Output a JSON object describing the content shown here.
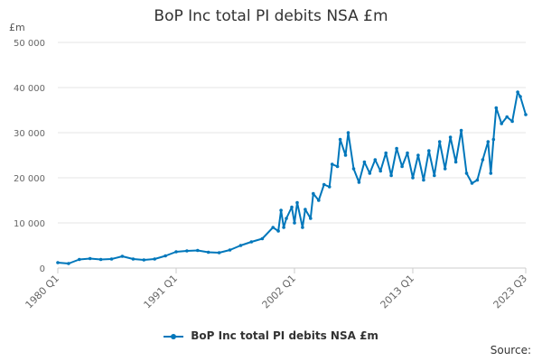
{
  "chart_data": {
    "type": "line",
    "title": "BoP Inc total PI debits NSA £m",
    "ylabel": "£m",
    "xlabel": "",
    "ylim": [
      0,
      50000
    ],
    "yticks": [
      0,
      10000,
      20000,
      30000,
      40000,
      50000
    ],
    "ytick_labels": [
      "0",
      "10 000",
      "20 000",
      "30 000",
      "40 000",
      "50 000"
    ],
    "xticks": [
      "1980 Q1",
      "1991 Q1",
      "2002 Q1",
      "2013 Q1",
      "2023 Q3"
    ],
    "grid": true,
    "legend_position": "bottom",
    "color": "#0077bb",
    "series": [
      {
        "name": "BoP Inc total PI debits NSA £m",
        "points": [
          [
            "1980 Q1",
            1200
          ],
          [
            "1981 Q1",
            1000
          ],
          [
            "1982 Q1",
            1900
          ],
          [
            "1983 Q1",
            2100
          ],
          [
            "1984 Q1",
            1900
          ],
          [
            "1985 Q1",
            2000
          ],
          [
            "1986 Q1",
            2600
          ],
          [
            "1987 Q1",
            2000
          ],
          [
            "1988 Q1",
            1800
          ],
          [
            "1989 Q1",
            2000
          ],
          [
            "1990 Q1",
            2700
          ],
          [
            "1991 Q1",
            3600
          ],
          [
            "1992 Q1",
            3800
          ],
          [
            "1993 Q1",
            3900
          ],
          [
            "1994 Q1",
            3500
          ],
          [
            "1995 Q1",
            3400
          ],
          [
            "1996 Q1",
            4000
          ],
          [
            "1997 Q1",
            5000
          ],
          [
            "1998 Q1",
            5800
          ],
          [
            "1999 Q1",
            6500
          ],
          [
            "2000 Q1",
            9000
          ],
          [
            "2000 Q3",
            8200
          ],
          [
            "2000 Q4",
            12800
          ],
          [
            "2001 Q1",
            9000
          ],
          [
            "2001 Q2",
            11000
          ],
          [
            "2001 Q4",
            13500
          ],
          [
            "2002 Q1",
            10000
          ],
          [
            "2002 Q2",
            14500
          ],
          [
            "2002 Q4",
            9000
          ],
          [
            "2003 Q1",
            13000
          ],
          [
            "2003 Q3",
            11000
          ],
          [
            "2003 Q4",
            16500
          ],
          [
            "2004 Q2",
            15000
          ],
          [
            "2004 Q4",
            18500
          ],
          [
            "2005 Q2",
            18000
          ],
          [
            "2005 Q3",
            23000
          ],
          [
            "2006 Q1",
            22500
          ],
          [
            "2006 Q2",
            28500
          ],
          [
            "2006 Q4",
            25000
          ],
          [
            "2007 Q1",
            30000
          ],
          [
            "2007 Q3",
            22000
          ],
          [
            "2008 Q1",
            19000
          ],
          [
            "2008 Q3",
            23500
          ],
          [
            "2009 Q1",
            21000
          ],
          [
            "2009 Q3",
            24000
          ],
          [
            "2010 Q1",
            21500
          ],
          [
            "2010 Q3",
            25500
          ],
          [
            "2011 Q1",
            20500
          ],
          [
            "2011 Q3",
            26500
          ],
          [
            "2012 Q1",
            22500
          ],
          [
            "2012 Q3",
            25500
          ],
          [
            "2013 Q1",
            20000
          ],
          [
            "2013 Q3",
            25000
          ],
          [
            "2014 Q1",
            19500
          ],
          [
            "2014 Q3",
            26000
          ],
          [
            "2015 Q1",
            20500
          ],
          [
            "2015 Q3",
            28000
          ],
          [
            "2016 Q1",
            22000
          ],
          [
            "2016 Q3",
            29000
          ],
          [
            "2017 Q1",
            23500
          ],
          [
            "2017 Q3",
            30500
          ],
          [
            "2018 Q1",
            21000
          ],
          [
            "2018 Q3",
            18800
          ],
          [
            "2019 Q1",
            19500
          ],
          [
            "2019 Q3",
            24000
          ],
          [
            "2020 Q1",
            28000
          ],
          [
            "2020 Q2",
            21000
          ],
          [
            "2020 Q3",
            28500
          ],
          [
            "2020 Q4",
            35500
          ],
          [
            "2021 Q2",
            32000
          ],
          [
            "2021 Q4",
            33500
          ],
          [
            "2022 Q2",
            32500
          ],
          [
            "2022 Q4",
            39000
          ],
          [
            "2023 Q1",
            38000
          ],
          [
            "2023 Q3",
            34000
          ]
        ]
      }
    ],
    "source_label": "Source:"
  }
}
